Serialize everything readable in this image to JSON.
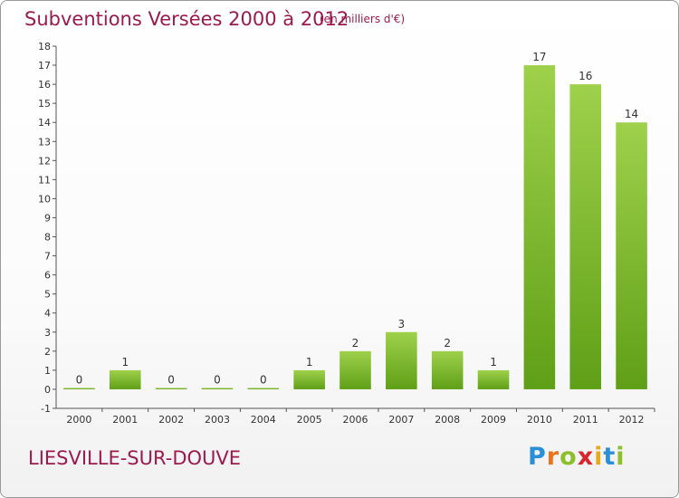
{
  "header": {
    "title": "Subventions Versées 2000 à 2012",
    "unit": "(en milliers d'€)"
  },
  "footer": {
    "commune": "LIESVILLE-SUR-DOUVE",
    "logo_letters": [
      "P",
      "r",
      "o",
      "x",
      "i",
      "t",
      "i"
    ],
    "logo_colors": [
      "#2b8fd8",
      "#e8741c",
      "#8dbf2a",
      "#d9262a",
      "#e8a91c",
      "#2b8fd8",
      "#8dbf2a"
    ]
  },
  "chart_data": {
    "type": "bar",
    "categories": [
      "2000",
      "2001",
      "2002",
      "2003",
      "2004",
      "2005",
      "2006",
      "2007",
      "2008",
      "2009",
      "2010",
      "2011",
      "2012"
    ],
    "values": [
      0,
      1,
      0,
      0,
      0,
      1,
      2,
      3,
      2,
      1,
      17,
      16,
      14
    ],
    "data_labels": [
      "0",
      "1",
      "0",
      "0",
      "0",
      "1",
      "2",
      "3",
      "2",
      "1",
      "17",
      "16",
      "14"
    ],
    "ylim": [
      -1,
      18
    ],
    "yticks": [
      "-1",
      "0",
      "1",
      "2",
      "3",
      "4",
      "5",
      "6",
      "7",
      "8",
      "9",
      "10",
      "11",
      "12",
      "13",
      "14",
      "15",
      "16",
      "17",
      "18"
    ],
    "grid": false,
    "legend": "none",
    "colors": {
      "bar_top": "#9fd14b",
      "bar_bottom": "#5f9f17",
      "axis": "#555555",
      "text": "#333333"
    }
  }
}
